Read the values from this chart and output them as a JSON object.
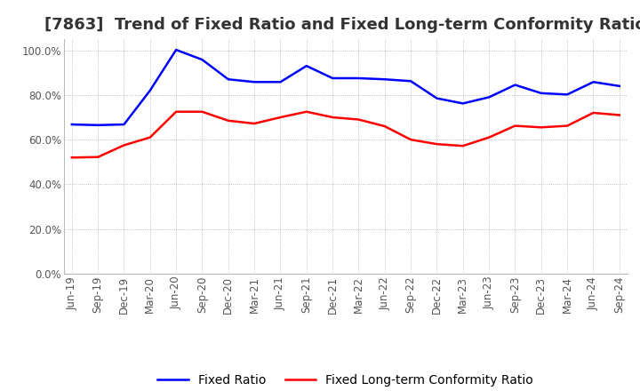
{
  "title": "[7863]  Trend of Fixed Ratio and Fixed Long-term Conformity Ratio",
  "x_labels": [
    "Jun-19",
    "Sep-19",
    "Dec-19",
    "Mar-20",
    "Jun-20",
    "Sep-20",
    "Dec-20",
    "Mar-21",
    "Jun-21",
    "Sep-21",
    "Dec-21",
    "Mar-22",
    "Jun-22",
    "Sep-22",
    "Dec-22",
    "Mar-23",
    "Jun-23",
    "Sep-23",
    "Dec-23",
    "Mar-24",
    "Jun-24",
    "Sep-24"
  ],
  "fixed_ratio": [
    0.668,
    0.665,
    0.668,
    0.82,
    1.002,
    0.958,
    0.87,
    0.858,
    0.858,
    0.93,
    0.875,
    0.875,
    0.87,
    0.862,
    0.785,
    0.762,
    0.79,
    0.845,
    0.808,
    0.802,
    0.858,
    0.84
  ],
  "fixed_lt_ratio": [
    0.52,
    0.522,
    0.575,
    0.61,
    0.725,
    0.725,
    0.685,
    0.672,
    0.7,
    0.725,
    0.7,
    0.69,
    0.66,
    0.6,
    0.58,
    0.572,
    0.61,
    0.662,
    0.655,
    0.662,
    0.72,
    0.71
  ],
  "fixed_ratio_color": "#0000ff",
  "fixed_lt_ratio_color": "#ff0000",
  "background_color": "#ffffff",
  "grid_color": "#aaaaaa",
  "ylim": [
    0.0,
    1.05
  ],
  "yticks": [
    0.0,
    0.2,
    0.4,
    0.6,
    0.8,
    1.0
  ],
  "title_fontsize": 13,
  "legend_fontsize": 10,
  "tick_fontsize": 8.5
}
